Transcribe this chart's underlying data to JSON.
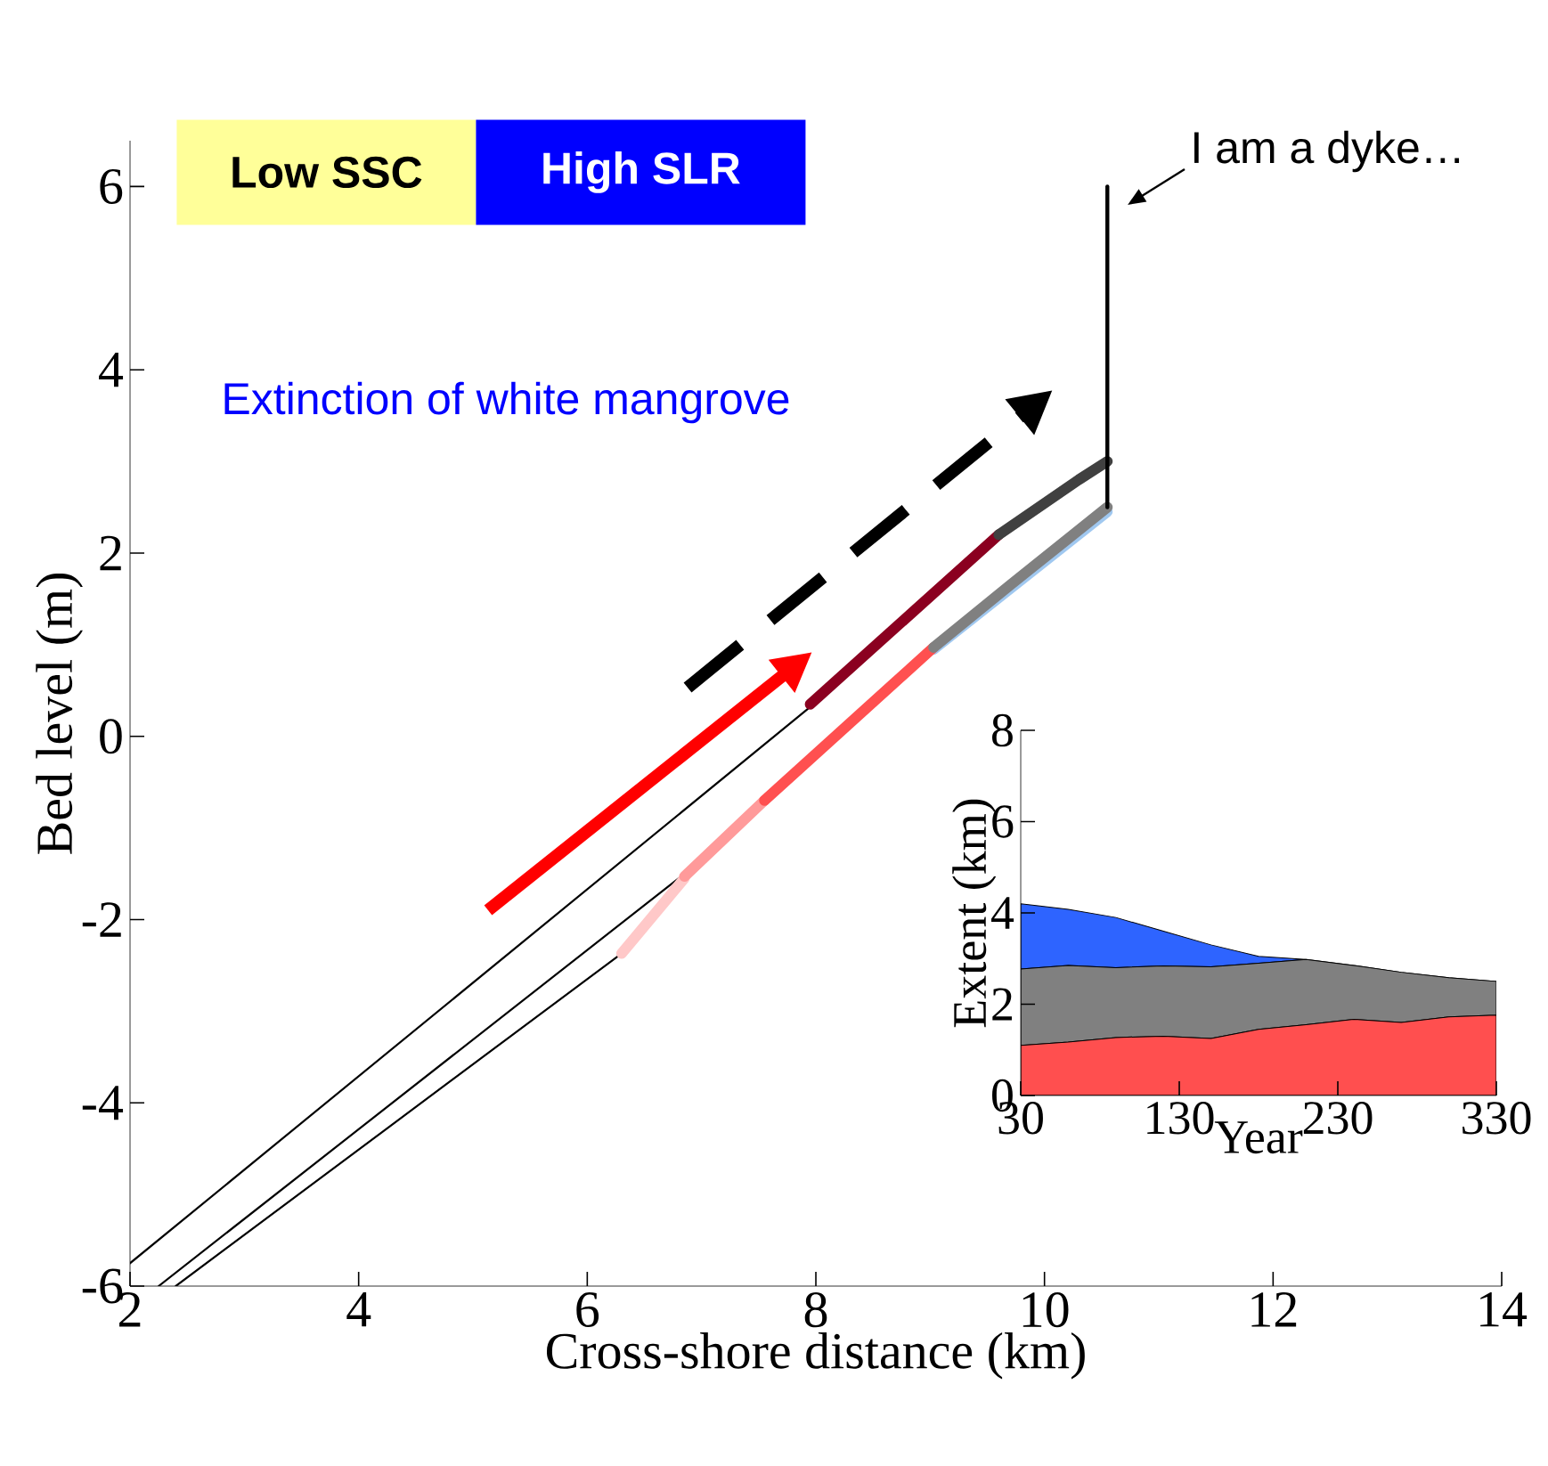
{
  "chart_data": [
    {
      "type": "line",
      "xlabel": "Cross-shore distance (km)",
      "ylabel": "Bed level (m)",
      "xlim": [
        2,
        14
      ],
      "ylim": [
        -6,
        6.5
      ],
      "xticks": [
        2,
        4,
        6,
        8,
        10,
        12,
        14
      ],
      "yticks": [
        -6,
        -4,
        -2,
        0,
        2,
        4,
        6
      ],
      "marker": "none",
      "annotations": [
        "Low SSC",
        "High SLR",
        "Extinction of white mangrove",
        "I am a dyke…"
      ],
      "series": [
        {
          "color": "#000000",
          "x": [
            2,
            7.93
          ],
          "values": [
            -5.75,
            0.3
          ]
        },
        {
          "color": "#000000",
          "x": [
            2.25,
            6.82
          ],
          "values": [
            -6,
            -1.53
          ]
        },
        {
          "color": "#000000",
          "x": [
            2.4,
            6.3
          ],
          "values": [
            -6,
            -2.37
          ]
        },
        {
          "color": "#a0c8f0",
          "x": [
            9.03,
            10.55
          ],
          "values": [
            0.95,
            2.45
          ]
        },
        {
          "color": "#ffc8c8",
          "x": [
            6.3,
            6.85
          ],
          "values": [
            -2.37,
            -1.55
          ]
        },
        {
          "color": "#ff9a9a",
          "x": [
            6.85,
            7.55
          ],
          "values": [
            -1.53,
            -0.7
          ]
        },
        {
          "color": "#ff5050",
          "x": [
            7.55,
            9.03
          ],
          "values": [
            -0.7,
            0.97
          ]
        },
        {
          "color": "#808080",
          "x": [
            9.03,
            9.7,
            10.3,
            10.55
          ],
          "values": [
            0.97,
            1.65,
            2.25,
            2.5
          ]
        },
        {
          "color": "#8b0020",
          "x": [
            7.95,
            9.6
          ],
          "values": [
            0.35,
            2.2
          ]
        },
        {
          "color": "#404040",
          "x": [
            9.6,
            10.3,
            10.55
          ],
          "values": [
            2.2,
            2.8,
            3.0
          ]
        },
        {
          "color": "#000000",
          "x": [
            10.55,
            10.55
          ],
          "values": [
            2.5,
            6
          ]
        }
      ]
    },
    {
      "type": "area",
      "stacked": true,
      "xlabel": "Year",
      "ylabel": "Extent (km)",
      "x": [
        30,
        60,
        90,
        120,
        150,
        180,
        210,
        240,
        270,
        300,
        330
      ],
      "xlim": [
        30,
        330
      ],
      "ylim": [
        0,
        8
      ],
      "xticks": [
        30,
        130,
        230,
        330
      ],
      "yticks": [
        0,
        2,
        4,
        6,
        8
      ],
      "series": [
        {
          "color": "#ff4f4f",
          "values": [
            1.1,
            1.17,
            1.27,
            1.3,
            1.25,
            1.45,
            1.55,
            1.67,
            1.6,
            1.72,
            1.76
          ]
        },
        {
          "color": "#808080",
          "values": [
            1.67,
            1.68,
            1.53,
            1.54,
            1.57,
            1.45,
            1.43,
            1.18,
            1.1,
            0.86,
            0.74
          ]
        },
        {
          "color": "#2e64ff",
          "values": [
            1.43,
            1.23,
            1.1,
            0.76,
            0.48,
            0.15,
            0,
            0,
            0,
            0,
            0
          ]
        }
      ]
    }
  ]
}
